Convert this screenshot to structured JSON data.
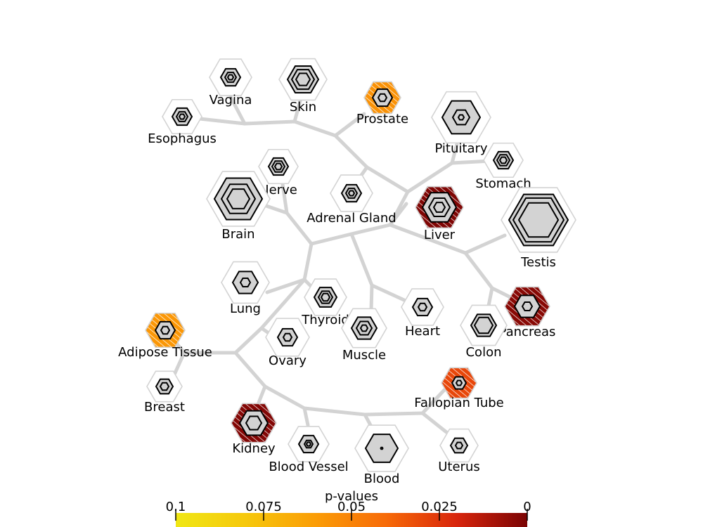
{
  "diagram": {
    "tissues": [
      {
        "name": "Vagina",
        "colored": false
      },
      {
        "name": "Skin",
        "colored": false
      },
      {
        "name": "Esophagus",
        "colored": false
      },
      {
        "name": "Prostate",
        "colored": true,
        "p_value": 0.056
      },
      {
        "name": "Pituitary",
        "colored": false
      },
      {
        "name": "Stomach",
        "colored": false
      },
      {
        "name": "Nerve",
        "colored": false
      },
      {
        "name": "Brain",
        "colored": false
      },
      {
        "name": "Adrenal Gland",
        "colored": false
      },
      {
        "name": "Liver",
        "colored": true,
        "p_value": 0.001
      },
      {
        "name": "Testis",
        "colored": false
      },
      {
        "name": "Lung",
        "colored": false
      },
      {
        "name": "Thyroid",
        "colored": false
      },
      {
        "name": "Heart",
        "colored": false
      },
      {
        "name": "Muscle",
        "colored": false
      },
      {
        "name": "Pancreas",
        "colored": true,
        "p_value": 0.003
      },
      {
        "name": "Colon",
        "colored": false
      },
      {
        "name": "Adipose Tissue",
        "colored": true,
        "p_value": 0.058
      },
      {
        "name": "Ovary",
        "colored": false
      },
      {
        "name": "Breast",
        "colored": false
      },
      {
        "name": "Fallopian Tube",
        "colored": true,
        "p_value": 0.03
      },
      {
        "name": "Kidney",
        "colored": true,
        "p_value": 0.002
      },
      {
        "name": "Blood Vessel",
        "colored": false
      },
      {
        "name": "Blood",
        "colored": false
      },
      {
        "name": "Uterus",
        "colored": false
      }
    ],
    "colorbar": {
      "title": "p-values",
      "ticks": [
        "0.1",
        "0.075",
        "0.05",
        "0.025",
        "0"
      ],
      "colormap": [
        "#f0e714",
        "#f6c80c",
        "#fb9c06",
        "#f76a08",
        "#d8250c",
        "#7a0404"
      ]
    },
    "colors": {
      "branch": "#d3d3d3",
      "hex_outline": "#d3d3d3",
      "hex_fill": "#d3d3d3",
      "ring": "#000000"
    }
  }
}
